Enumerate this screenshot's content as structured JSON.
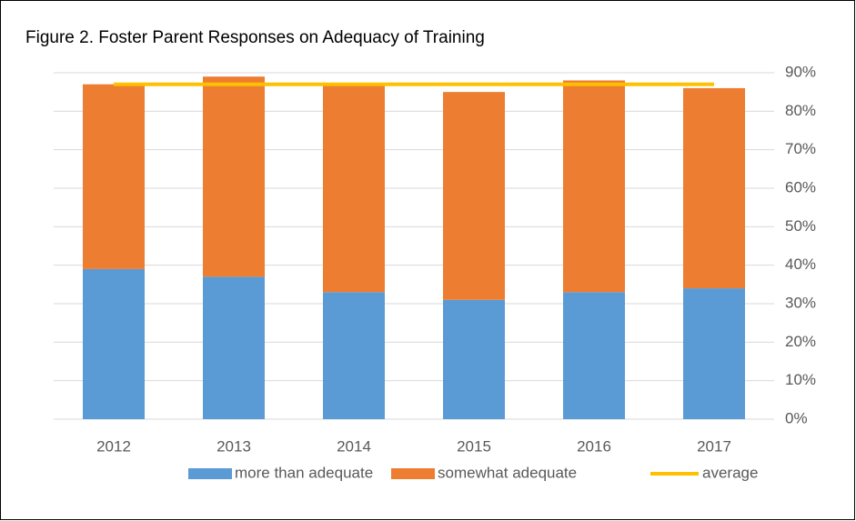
{
  "chart_data": {
    "type": "bar",
    "stacked": true,
    "title": "Figure 2. Foster Parent Responses on Adequacy of Training",
    "categories": [
      "2012",
      "2013",
      "2014",
      "2015",
      "2016",
      "2017"
    ],
    "series": [
      {
        "name": "more than adequate",
        "type": "bar",
        "color": "#5b9bd5",
        "values": [
          39,
          37,
          33,
          31,
          33,
          34
        ]
      },
      {
        "name": "somewhat adequate",
        "type": "bar",
        "color": "#ed7d31",
        "values": [
          48,
          52,
          54,
          54,
          55,
          52
        ]
      },
      {
        "name": "average",
        "type": "line",
        "color": "#ffc000",
        "values": [
          87,
          87,
          87,
          87,
          87,
          87
        ]
      }
    ],
    "ylim": [
      0,
      90
    ],
    "yaxis_side": "right",
    "yticks": [
      {
        "value": 0,
        "label": "0%"
      },
      {
        "value": 10,
        "label": "10%"
      },
      {
        "value": 20,
        "label": "20%"
      },
      {
        "value": 30,
        "label": "30%"
      },
      {
        "value": 40,
        "label": "40%"
      },
      {
        "value": 50,
        "label": "50%"
      },
      {
        "value": 60,
        "label": "60%"
      },
      {
        "value": 70,
        "label": "70%"
      },
      {
        "value": 80,
        "label": "80%"
      },
      {
        "value": 90,
        "label": "90%"
      }
    ],
    "grid": true,
    "legend": "bottom"
  }
}
